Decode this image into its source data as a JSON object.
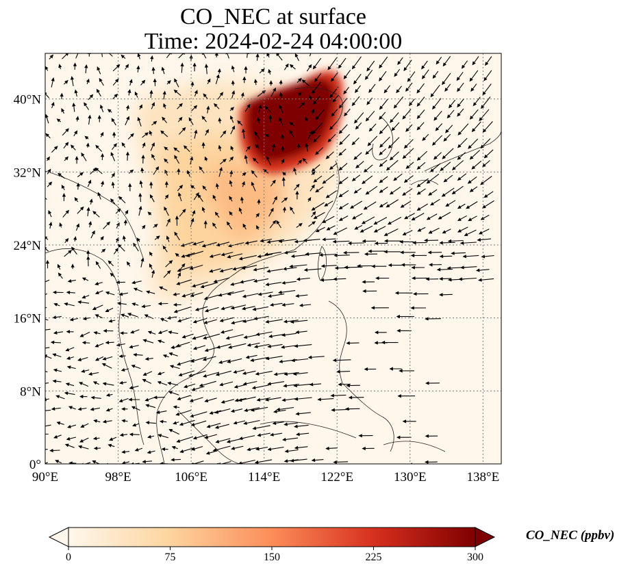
{
  "title": {
    "line1": "CO_NEC at surface",
    "line2": "Time: 2024-02-24 04:00:00"
  },
  "map": {
    "variable": "CO_NEC",
    "level": "surface",
    "lon_range": [
      90,
      140
    ],
    "lat_range": [
      0,
      45
    ],
    "lon_ticks": [
      "90°E",
      "98°E",
      "106°E",
      "114°E",
      "122°E",
      "130°E",
      "138°E"
    ],
    "lat_ticks": [
      "0°",
      "8°N",
      "16°N",
      "24°N",
      "32°N",
      "40°N"
    ],
    "gridlines": true,
    "overlay": "wind vectors",
    "high_concentration_region": "North China Plain"
  },
  "colorbar": {
    "label": "CO_NEC (ppbv)",
    "min": 0,
    "max": 300,
    "ticks": [
      "0",
      "75",
      "150",
      "225",
      "300"
    ],
    "colormap": "OrRd",
    "colors": [
      "#fff7ec",
      "#fdd49e",
      "#fc8d59",
      "#d7301f",
      "#7f0000"
    ],
    "extend": "both"
  }
}
